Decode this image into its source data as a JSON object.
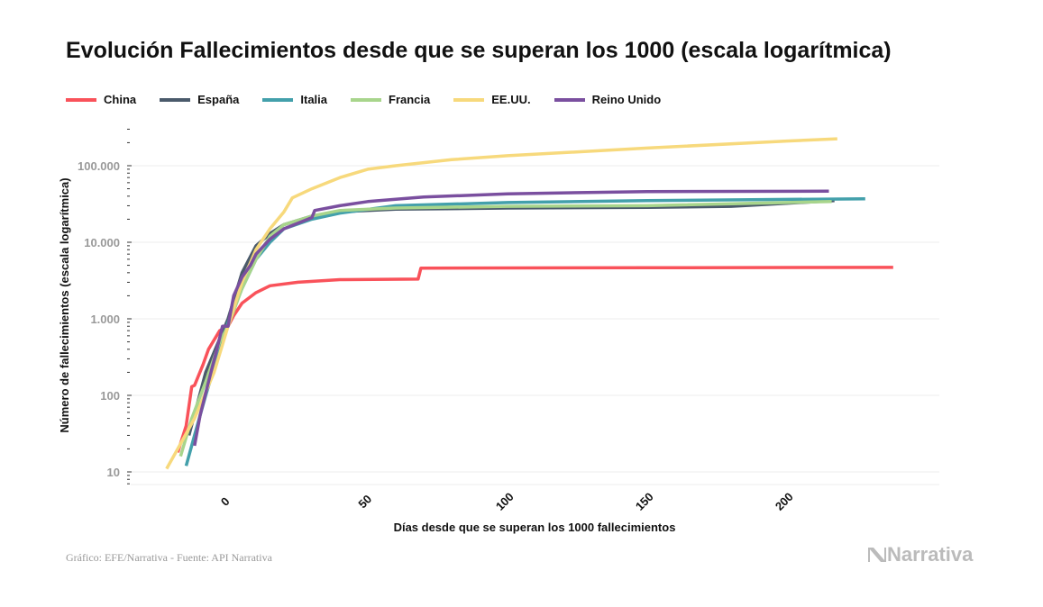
{
  "chart_data": {
    "type": "line",
    "title": "Evolución Fallecimientos desde que se superan los 1000 (escala logarítmica)",
    "xlabel": "Días desde que se superan los 1000 fallecimientos",
    "ylabel": "Número de fallecimientos (escala logarítmica)",
    "xlim": [
      -35,
      254
    ],
    "ylim": [
      6.8,
      330000
    ],
    "yscale": "log",
    "xticks": [
      0,
      50,
      100,
      150,
      200
    ],
    "xtick_labels": [
      "0",
      "50",
      "100",
      "150",
      "200"
    ],
    "yticks": [
      10,
      100,
      1000,
      10000,
      100000
    ],
    "ytick_labels": [
      "10",
      "100",
      "1.000",
      "10.000",
      "100.000"
    ],
    "grid": "horizontal",
    "legend_position": "top-left",
    "series": [
      {
        "name": "China",
        "color": "#f9525a",
        "points": [
          [
            -18,
            18
          ],
          [
            -15,
            40
          ],
          [
            -13,
            130
          ],
          [
            -12,
            135
          ],
          [
            -9,
            250
          ],
          [
            -7,
            400
          ],
          [
            -3,
            700
          ],
          [
            0,
            800
          ],
          [
            2,
            1100
          ],
          [
            5,
            1600
          ],
          [
            10,
            2200
          ],
          [
            15,
            2700
          ],
          [
            25,
            3000
          ],
          [
            40,
            3250
          ],
          [
            68,
            3300
          ],
          [
            69,
            4600
          ],
          [
            150,
            4650
          ],
          [
            238,
            4700
          ]
        ]
      },
      {
        "name": "España",
        "color": "#4a5a6b",
        "points": [
          [
            -14,
            30
          ],
          [
            -8,
            200
          ],
          [
            0,
            1000
          ],
          [
            5,
            4000
          ],
          [
            10,
            9000
          ],
          [
            15,
            13000
          ],
          [
            20,
            17000
          ],
          [
            30,
            22000
          ],
          [
            40,
            25000
          ],
          [
            60,
            27000
          ],
          [
            100,
            28000
          ],
          [
            150,
            28500
          ],
          [
            180,
            29500
          ],
          [
            217,
            35000
          ]
        ]
      },
      {
        "name": "Italia",
        "color": "#43a0ab",
        "points": [
          [
            -15,
            12
          ],
          [
            -12,
            30
          ],
          [
            -8,
            100
          ],
          [
            -4,
            300
          ],
          [
            0,
            900
          ],
          [
            5,
            2500
          ],
          [
            10,
            6000
          ],
          [
            15,
            10000
          ],
          [
            20,
            15000
          ],
          [
            30,
            20000
          ],
          [
            40,
            24000
          ],
          [
            60,
            30000
          ],
          [
            100,
            33000
          ],
          [
            150,
            35000
          ],
          [
            228,
            37000
          ]
        ]
      },
      {
        "name": "Francia",
        "color": "#a8d58c",
        "points": [
          [
            -17,
            16
          ],
          [
            -13,
            50
          ],
          [
            -8,
            150
          ],
          [
            -3,
            500
          ],
          [
            0,
            800
          ],
          [
            5,
            2500
          ],
          [
            10,
            6000
          ],
          [
            15,
            12000
          ],
          [
            20,
            17000
          ],
          [
            30,
            22000
          ],
          [
            40,
            26000
          ],
          [
            60,
            28000
          ],
          [
            100,
            29500
          ],
          [
            150,
            30000
          ],
          [
            216,
            34000
          ]
        ]
      },
      {
        "name": "EE.UU.",
        "color": "#f7d97c",
        "points": [
          [
            -22,
            11
          ],
          [
            -18,
            20
          ],
          [
            -12,
            50
          ],
          [
            -5,
            200
          ],
          [
            0,
            800
          ],
          [
            5,
            3000
          ],
          [
            10,
            8000
          ],
          [
            15,
            15000
          ],
          [
            20,
            25000
          ],
          [
            23,
            38000
          ],
          [
            30,
            50000
          ],
          [
            40,
            70000
          ],
          [
            50,
            90000
          ],
          [
            60,
            100000
          ],
          [
            80,
            120000
          ],
          [
            100,
            135000
          ],
          [
            150,
            170000
          ],
          [
            200,
            210000
          ],
          [
            218,
            225000
          ]
        ]
      },
      {
        "name": "Reino Unido",
        "color": "#7a4f9f",
        "points": [
          [
            -12,
            22
          ],
          [
            -10,
            55
          ],
          [
            -7,
            150
          ],
          [
            -4,
            400
          ],
          [
            -2,
            800
          ],
          [
            0,
            800
          ],
          [
            2,
            2000
          ],
          [
            5,
            3500
          ],
          [
            8,
            5000
          ],
          [
            10,
            7000
          ],
          [
            15,
            11000
          ],
          [
            20,
            15000
          ],
          [
            30,
            21000
          ],
          [
            31,
            26000
          ],
          [
            40,
            30000
          ],
          [
            50,
            34000
          ],
          [
            70,
            39000
          ],
          [
            100,
            43000
          ],
          [
            150,
            46000
          ],
          [
            215,
            46500
          ]
        ]
      }
    ]
  },
  "footer": {
    "credit": "Gráfico: EFE/Narrativa - Fuente: API Narrativa"
  },
  "logo": {
    "text": "Narrativa"
  }
}
